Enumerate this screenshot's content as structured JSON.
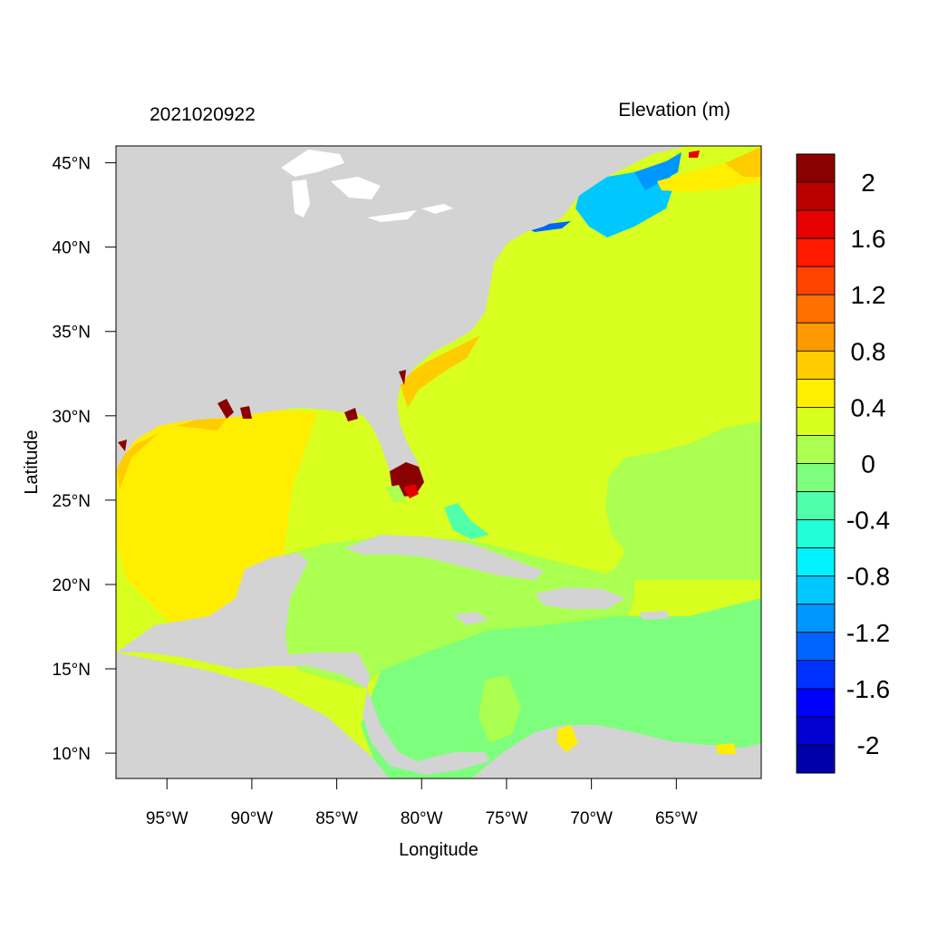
{
  "map": {
    "title_left": "2021020922",
    "title_right": "Elevation (m)",
    "xlabel": "Longitude",
    "ylabel": "Latitude",
    "lon_range": [
      -98,
      -60
    ],
    "lat_range": [
      8.5,
      46
    ],
    "lon_ticks": [
      {
        "value": -95,
        "label": "95°W"
      },
      {
        "value": -90,
        "label": "90°W"
      },
      {
        "value": -85,
        "label": "85°W"
      },
      {
        "value": -80,
        "label": "80°W"
      },
      {
        "value": -75,
        "label": "75°W"
      },
      {
        "value": -70,
        "label": "70°W"
      },
      {
        "value": -65,
        "label": "65°W"
      }
    ],
    "lat_ticks": [
      {
        "value": 45,
        "label": "45°N"
      },
      {
        "value": 40,
        "label": "40°N"
      },
      {
        "value": 35,
        "label": "35°N"
      },
      {
        "value": 30,
        "label": "30°N"
      },
      {
        "value": 25,
        "label": "25°N"
      },
      {
        "value": 20,
        "label": "20°N"
      },
      {
        "value": 15,
        "label": "15°N"
      },
      {
        "value": 10,
        "label": "10°N"
      }
    ],
    "land_color": "#d3d3d3",
    "field_levels_m": [
      {
        "region": "north-atlantic-open-ocean",
        "value": 0.3
      },
      {
        "region": "gulf-of-mexico-west",
        "value": 0.5
      },
      {
        "region": "caribbean-west",
        "value": 0.1
      },
      {
        "region": "caribbean-east",
        "value": -0.1
      },
      {
        "region": "gulf-of-maine",
        "value": -1.0
      },
      {
        "region": "south-florida-coast",
        "value": 2.2
      }
    ]
  },
  "colorbar": {
    "labels": [
      "2",
      "1.6",
      "1.2",
      "0.8",
      "0.4",
      "0",
      "-0.4",
      "-0.8",
      "-1.2",
      "-1.6",
      "-2"
    ],
    "colors": [
      "#8b0000",
      "#bb0000",
      "#e60000",
      "#ff1a00",
      "#ff4400",
      "#ff7000",
      "#ff9900",
      "#ffcc00",
      "#ffee00",
      "#d8ff20",
      "#aaff50",
      "#7dff7d",
      "#50ffaa",
      "#20ffd8",
      "#00f2ff",
      "#00c8ff",
      "#0096ff",
      "#0064ff",
      "#0032ff",
      "#0000ff",
      "#0000d0",
      "#0000a8"
    ]
  }
}
